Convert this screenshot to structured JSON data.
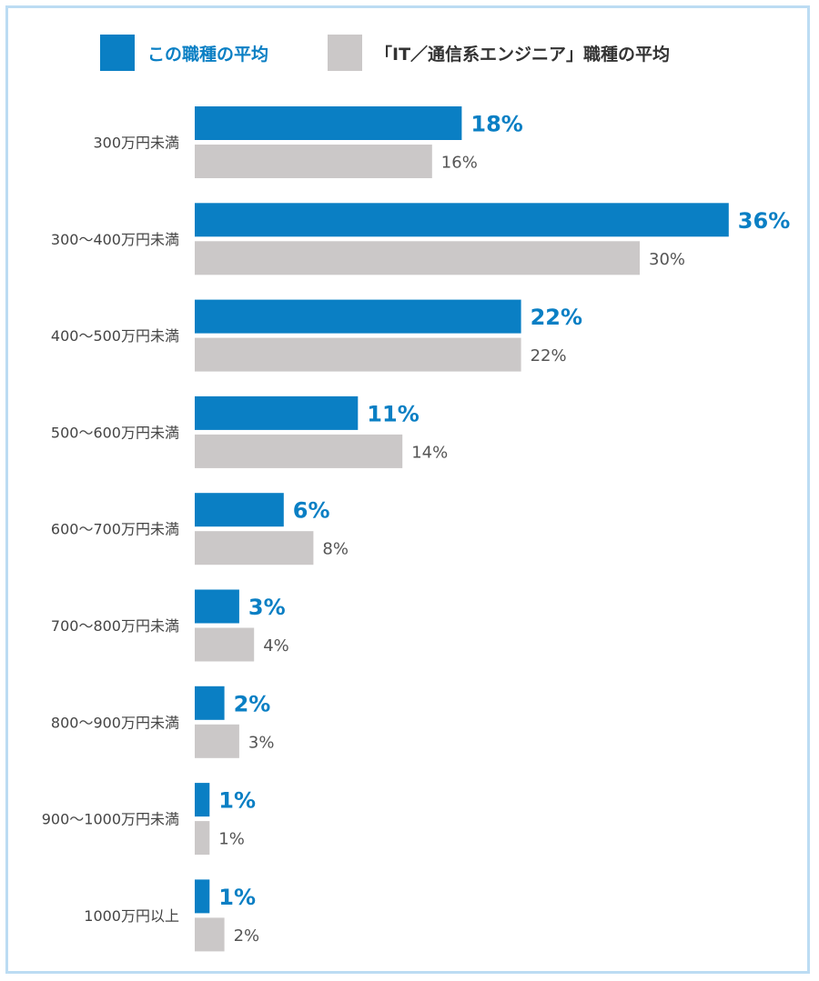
{
  "colors": {
    "primary": "#0a7fc4",
    "secondary": "#cbc8c8",
    "frame": "#bcdcf3"
  },
  "legend": {
    "primary": {
      "label": "この職種の平均"
    },
    "secondary": {
      "label": "「IT／通信系エンジニア」職種の平均"
    }
  },
  "chart_data": {
    "type": "bar",
    "orientation": "horizontal",
    "categories": [
      "300万円未満",
      "300〜400万円未満",
      "400〜500万円未満",
      "500〜600万円未満",
      "600〜700万円未満",
      "700〜800万円未満",
      "800〜900万円未満",
      "900〜1000万円未満",
      "1000万円以上"
    ],
    "series": [
      {
        "name": "この職種の平均",
        "values": [
          18,
          36,
          22,
          11,
          6,
          3,
          2,
          1,
          1
        ],
        "labels": [
          "18%",
          "36%",
          "22%",
          "11%",
          "6%",
          "3%",
          "2%",
          "1%",
          "1%"
        ]
      },
      {
        "name": "「IT／通信系エンジニア」職種の平均",
        "values": [
          16,
          30,
          22,
          14,
          8,
          4,
          3,
          1,
          2
        ],
        "labels": [
          "16%",
          "30%",
          "22%",
          "14%",
          "8%",
          "4%",
          "3%",
          "1%",
          "2%"
        ]
      }
    ],
    "grid": false,
    "legend_position": "top"
  }
}
